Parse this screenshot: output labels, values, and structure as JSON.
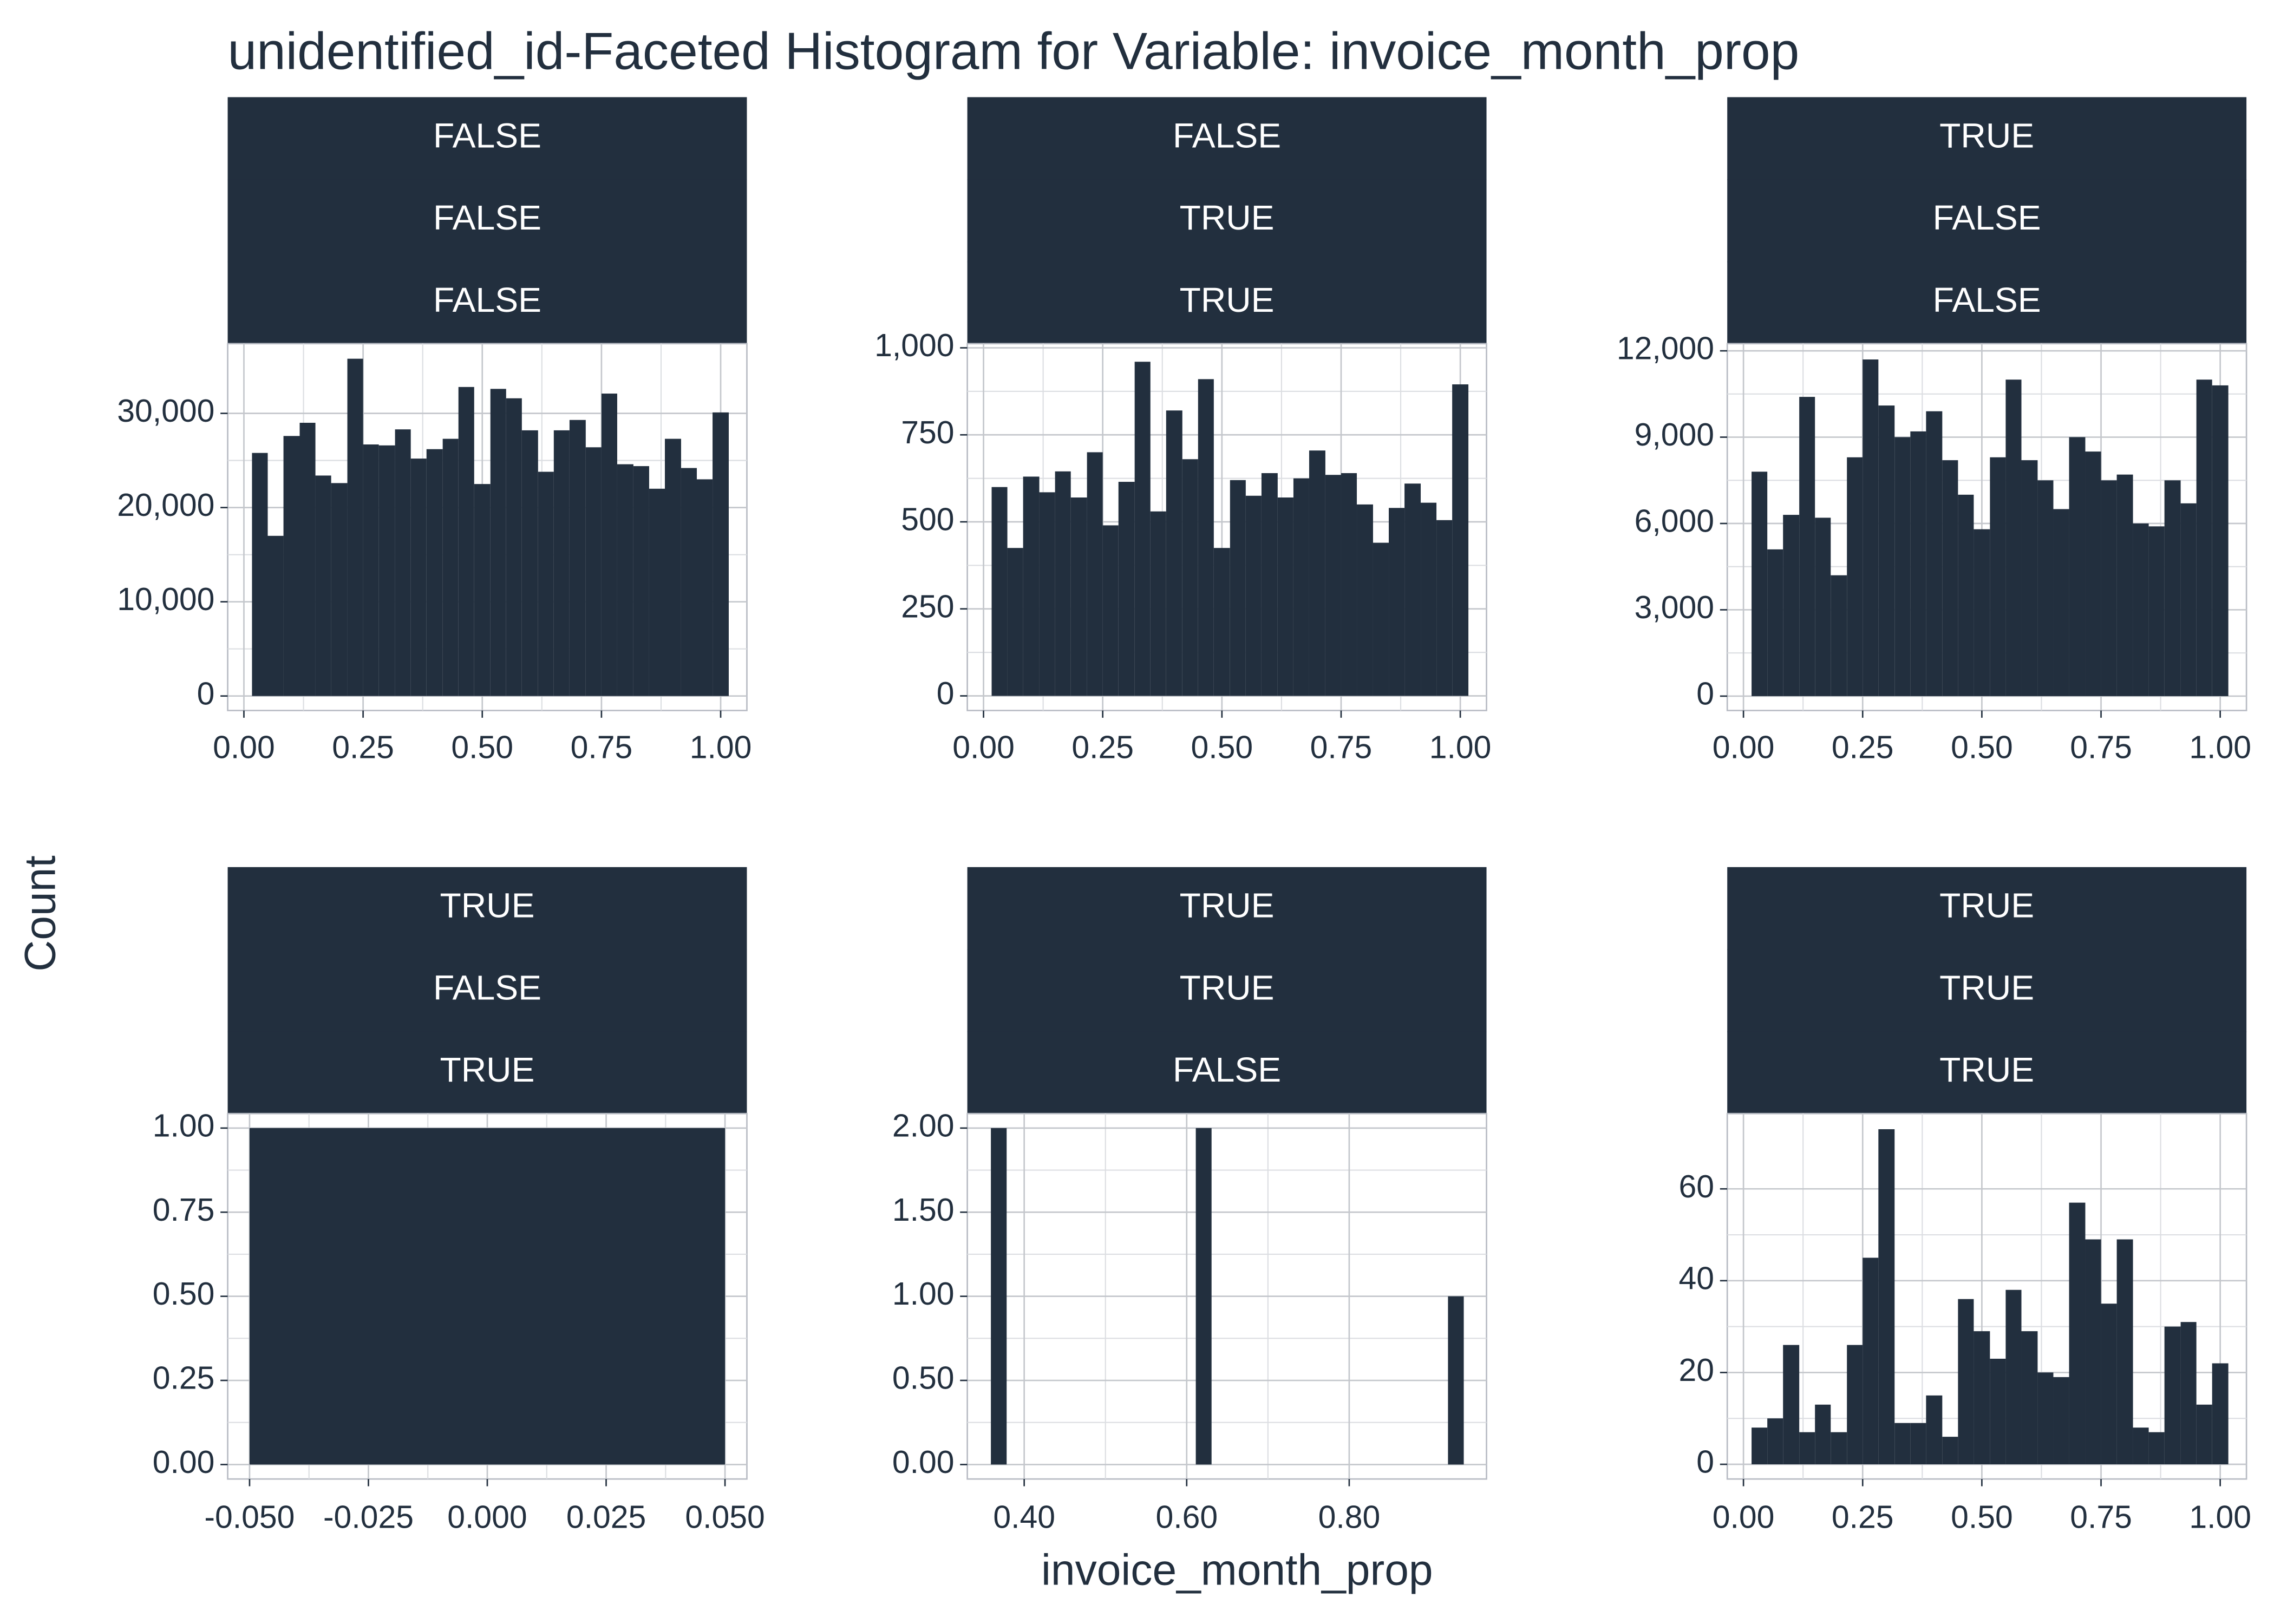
{
  "title": "unidentified_id-Faceted Histogram for Variable: invoice_month_prop",
  "x_label": "invoice_month_prop",
  "y_label": "Count",
  "chart_data": [
    {
      "type": "histogram",
      "facets": [
        "FALSE",
        "FALSE",
        "FALSE"
      ],
      "color": "#222f3e",
      "grid": true,
      "bins": [
        0.017,
        0.05,
        0.083,
        0.117,
        0.15,
        0.183,
        0.217,
        0.25,
        0.283,
        0.317,
        0.35,
        0.383,
        0.417,
        0.45,
        0.483,
        0.517,
        0.55,
        0.583,
        0.617,
        0.65,
        0.683,
        0.717,
        0.75,
        0.783,
        0.817,
        0.85,
        0.883,
        0.917,
        0.95,
        0.983,
        1.017
      ],
      "counts": [
        25800,
        17000,
        27600,
        29000,
        23400,
        22600,
        35800,
        26700,
        26600,
        28300,
        25200,
        26200,
        27300,
        32800,
        22500,
        32600,
        31600,
        28200,
        23800,
        28200,
        29300,
        26400,
        32100,
        24600,
        24400,
        22000,
        27300,
        24200,
        23000,
        30100
      ],
      "xlim": [
        -0.034,
        1.055
      ],
      "ylim": [
        -1540,
        37400
      ],
      "xticks": [
        {
          "value": 0,
          "label": "0.00"
        },
        {
          "value": 0.25,
          "label": "0.25"
        },
        {
          "value": 0.5,
          "label": "0.50"
        },
        {
          "value": 0.75,
          "label": "0.75"
        },
        {
          "value": 1,
          "label": "1.00"
        }
      ],
      "yticks": [
        0,
        {
          "value": 10000,
          "label": "10,000"
        },
        {
          "value": 20000,
          "label": "20,000"
        },
        {
          "value": 30000,
          "label": "30,000"
        }
      ]
    },
    {
      "type": "histogram",
      "facets": [
        "FALSE",
        "TRUE",
        "TRUE"
      ],
      "color": "#222f3e",
      "grid": true,
      "bins": [
        0.017,
        0.05,
        0.083,
        0.117,
        0.15,
        0.183,
        0.217,
        0.25,
        0.283,
        0.317,
        0.35,
        0.383,
        0.417,
        0.45,
        0.483,
        0.517,
        0.55,
        0.583,
        0.617,
        0.65,
        0.683,
        0.717,
        0.75,
        0.783,
        0.817,
        0.85,
        0.883,
        0.917,
        0.95,
        0.983,
        1.017
      ],
      "counts": [
        600,
        425,
        630,
        585,
        645,
        570,
        700,
        490,
        615,
        960,
        530,
        820,
        680,
        910,
        425,
        620,
        575,
        640,
        570,
        625,
        705,
        635,
        640,
        550,
        440,
        540,
        610,
        555,
        505,
        895
      ],
      "xlim": [
        -0.034,
        1.055
      ],
      "ylim": [
        -42,
        1012
      ],
      "xticks": [
        {
          "value": 0,
          "label": "0.00"
        },
        {
          "value": 0.25,
          "label": "0.25"
        },
        {
          "value": 0.5,
          "label": "0.50"
        },
        {
          "value": 0.75,
          "label": "0.75"
        },
        {
          "value": 1,
          "label": "1.00"
        }
      ],
      "yticks": [
        0,
        250,
        500,
        750,
        {
          "value": 1000,
          "label": "1,000"
        }
      ]
    },
    {
      "type": "histogram",
      "facets": [
        "TRUE",
        "FALSE",
        "FALSE"
      ],
      "color": "#222f3e",
      "grid": true,
      "bins": [
        0.017,
        0.05,
        0.083,
        0.117,
        0.15,
        0.183,
        0.217,
        0.25,
        0.283,
        0.317,
        0.35,
        0.383,
        0.417,
        0.45,
        0.483,
        0.517,
        0.55,
        0.583,
        0.617,
        0.65,
        0.683,
        0.717,
        0.75,
        0.783,
        0.817,
        0.85,
        0.883,
        0.917,
        0.95,
        0.983,
        1.017
      ],
      "counts": [
        7800,
        5100,
        6300,
        10400,
        6200,
        4200,
        8300,
        11700,
        10100,
        9000,
        9200,
        9900,
        8200,
        7000,
        5800,
        8300,
        11000,
        8200,
        7500,
        6500,
        9000,
        8500,
        7500,
        7700,
        6000,
        5900,
        7500,
        6700,
        11000,
        10800
      ],
      "xlim": [
        -0.034,
        1.055
      ],
      "ylim": [
        -500,
        12250
      ],
      "xticks": [
        {
          "value": 0,
          "label": "0.00"
        },
        {
          "value": 0.25,
          "label": "0.25"
        },
        {
          "value": 0.5,
          "label": "0.50"
        },
        {
          "value": 0.75,
          "label": "0.75"
        },
        {
          "value": 1,
          "label": "1.00"
        }
      ],
      "yticks": [
        0,
        {
          "value": 3000,
          "label": "3,000"
        },
        {
          "value": 6000,
          "label": "6,000"
        },
        {
          "value": 9000,
          "label": "9,000"
        },
        {
          "value": 12000,
          "label": "12,000"
        }
      ]
    },
    {
      "type": "histogram",
      "facets": [
        "TRUE",
        "FALSE",
        "TRUE"
      ],
      "color": "#222f3e",
      "grid": true,
      "bins": [
        -0.05,
        0.05
      ],
      "counts": [
        1
      ],
      "xlim": [
        -0.0546,
        0.0546
      ],
      "ylim": [
        -0.043,
        1.043
      ],
      "xticks": [
        {
          "value": -0.05,
          "label": "-0.050"
        },
        {
          "value": -0.025,
          "label": "-0.025"
        },
        {
          "value": 0,
          "label": "0.000"
        },
        {
          "value": 0.025,
          "label": "0.025"
        },
        {
          "value": 0.05,
          "label": "0.050"
        }
      ],
      "yticks": [
        {
          "value": 0,
          "label": "0.00"
        },
        0.25,
        {
          "value": 0.5,
          "label": "0.50"
        },
        0.75,
        {
          "value": 1,
          "label": "1.00"
        }
      ]
    },
    {
      "type": "histogram",
      "facets": [
        "TRUE",
        "TRUE",
        "FALSE"
      ],
      "color": "#222f3e",
      "grid": true,
      "bins": [
        0.359,
        0.3784,
        0.3978,
        0.4172,
        0.4366,
        0.456,
        0.4754,
        0.4948,
        0.5142,
        0.5336,
        0.553,
        0.5724,
        0.5918,
        0.6112,
        0.6306,
        0.65,
        0.6694,
        0.6888,
        0.7082,
        0.7276,
        0.747,
        0.7664,
        0.7858,
        0.8052,
        0.8246,
        0.844,
        0.8634,
        0.8828,
        0.9022,
        0.9216,
        0.941
      ],
      "counts": [
        2,
        0,
        0,
        0,
        0,
        0,
        0,
        0,
        0,
        0,
        0,
        0,
        0,
        2,
        0,
        0,
        0,
        0,
        0,
        0,
        0,
        0,
        0,
        0,
        0,
        0,
        0,
        0,
        0,
        1
      ],
      "xlim": [
        0.33,
        0.969
      ],
      "ylim": [
        -0.086,
        2.086
      ],
      "xticks": [
        {
          "value": 0.4,
          "label": "0.40"
        },
        {
          "value": 0.6,
          "label": "0.60"
        },
        {
          "value": 0.8,
          "label": "0.80"
        }
      ],
      "yticks": [
        {
          "value": 0,
          "label": "0.00"
        },
        {
          "value": 0.5,
          "label": "0.50"
        },
        {
          "value": 1,
          "label": "1.00"
        },
        {
          "value": 1.5,
          "label": "1.50"
        },
        {
          "value": 2,
          "label": "2.00"
        }
      ]
    },
    {
      "type": "histogram",
      "facets": [
        "TRUE",
        "TRUE",
        "TRUE"
      ],
      "color": "#222f3e",
      "grid": true,
      "bins": [
        0.017,
        0.05,
        0.083,
        0.117,
        0.15,
        0.183,
        0.217,
        0.25,
        0.283,
        0.317,
        0.35,
        0.383,
        0.417,
        0.45,
        0.483,
        0.517,
        0.55,
        0.583,
        0.617,
        0.65,
        0.683,
        0.717,
        0.75,
        0.783,
        0.817,
        0.85,
        0.883,
        0.917,
        0.95,
        0.983,
        1.017
      ],
      "counts": [
        8,
        10,
        26,
        7,
        13,
        7,
        26,
        45,
        73,
        9,
        9,
        15,
        6,
        36,
        29,
        23,
        38,
        29,
        20,
        19,
        57,
        49,
        35,
        49,
        8,
        7,
        30,
        31,
        13,
        22
      ],
      "xlim": [
        -0.034,
        1.055
      ],
      "ylim": [
        -3.2,
        76.4
      ],
      "xticks": [
        {
          "value": 0,
          "label": "0.00"
        },
        {
          "value": 0.25,
          "label": "0.25"
        },
        {
          "value": 0.5,
          "label": "0.50"
        },
        {
          "value": 0.75,
          "label": "0.75"
        },
        {
          "value": 1,
          "label": "1.00"
        }
      ],
      "yticks": [
        0,
        20,
        40,
        60
      ]
    }
  ]
}
